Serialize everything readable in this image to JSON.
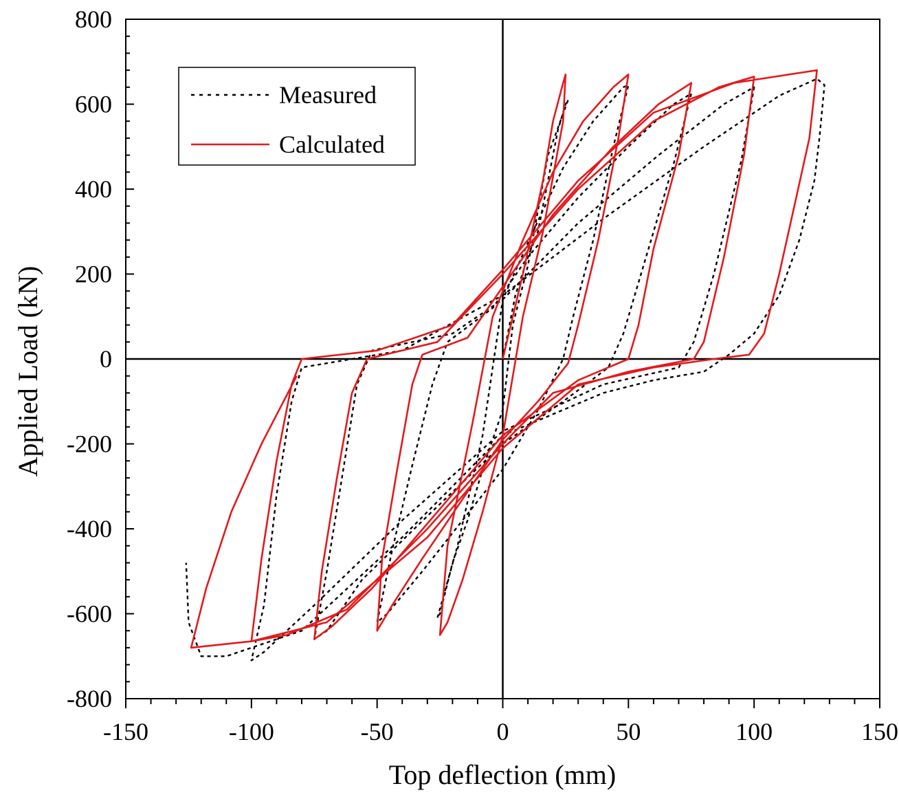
{
  "chart_data": {
    "type": "line",
    "title": "",
    "xlabel": "Top deflection (mm)",
    "ylabel": "Applied Load (kN)",
    "xlim": [
      -150,
      150
    ],
    "ylim": [
      -800,
      800
    ],
    "x_ticks": [
      -150,
      -100,
      -50,
      0,
      50,
      100,
      150
    ],
    "y_ticks": [
      800,
      600,
      400,
      200,
      0,
      -200,
      -400,
      -600,
      -800
    ],
    "grid": false,
    "legend_position": "top-left",
    "series": [
      {
        "name": "Measured",
        "style": "dotted",
        "color": "#000000",
        "points": [
          [
            0,
            0
          ],
          [
            5,
            150
          ],
          [
            10,
            240
          ],
          [
            14,
            300
          ],
          [
            18,
            420
          ],
          [
            22,
            540
          ],
          [
            25,
            600
          ],
          [
            26,
            610
          ],
          [
            18,
            480
          ],
          [
            10,
            220
          ],
          [
            4,
            80
          ],
          [
            0,
            -120
          ],
          [
            -8,
            -260
          ],
          [
            -14,
            -380
          ],
          [
            -20,
            -480
          ],
          [
            -25,
            -600
          ],
          [
            -26,
            -610
          ],
          [
            -18,
            -440
          ],
          [
            -8,
            -180
          ],
          [
            0,
            140
          ],
          [
            12,
            300
          ],
          [
            24,
            450
          ],
          [
            36,
            560
          ],
          [
            48,
            640
          ],
          [
            50,
            645
          ],
          [
            44,
            500
          ],
          [
            36,
            280
          ],
          [
            28,
            100
          ],
          [
            24,
            0
          ],
          [
            14,
            -120
          ],
          [
            0,
            -260
          ],
          [
            -16,
            -380
          ],
          [
            -32,
            -500
          ],
          [
            -46,
            -600
          ],
          [
            -50,
            -620
          ],
          [
            -44,
            -450
          ],
          [
            -36,
            -250
          ],
          [
            -28,
            -60
          ],
          [
            -22,
            40
          ],
          [
            -4,
            120
          ],
          [
            10,
            240
          ],
          [
            30,
            380
          ],
          [
            50,
            500
          ],
          [
            68,
            600
          ],
          [
            75,
            625
          ],
          [
            68,
            460
          ],
          [
            56,
            220
          ],
          [
            48,
            60
          ],
          [
            42,
            -20
          ],
          [
            24,
            -100
          ],
          [
            0,
            -200
          ],
          [
            -30,
            -370
          ],
          [
            -56,
            -520
          ],
          [
            -70,
            -640
          ],
          [
            -75,
            -660
          ],
          [
            -70,
            -500
          ],
          [
            -64,
            -280
          ],
          [
            -58,
            -60
          ],
          [
            -52,
            20
          ],
          [
            -20,
            60
          ],
          [
            0,
            140
          ],
          [
            30,
            320
          ],
          [
            62,
            480
          ],
          [
            88,
            600
          ],
          [
            100,
            640
          ],
          [
            95,
            470
          ],
          [
            84,
            200
          ],
          [
            76,
            40
          ],
          [
            70,
            -20
          ],
          [
            40,
            -60
          ],
          [
            0,
            -170
          ],
          [
            -40,
            -380
          ],
          [
            -75,
            -580
          ],
          [
            -95,
            -690
          ],
          [
            -100,
            -710
          ],
          [
            -95,
            -580
          ],
          [
            -90,
            -320
          ],
          [
            -84,
            -100
          ],
          [
            -80,
            -20
          ],
          [
            -40,
            20
          ],
          [
            0,
            150
          ],
          [
            40,
            330
          ],
          [
            80,
            500
          ],
          [
            110,
            620
          ],
          [
            125,
            660
          ],
          [
            128,
            645
          ],
          [
            126,
            520
          ],
          [
            124,
            420
          ],
          [
            118,
            280
          ],
          [
            110,
            150
          ],
          [
            100,
            60
          ],
          [
            90,
            10
          ],
          [
            80,
            -30
          ],
          [
            60,
            -50
          ],
          [
            40,
            -80
          ],
          [
            0,
            -180
          ],
          [
            -40,
            -420
          ],
          [
            -80,
            -640
          ],
          [
            -110,
            -700
          ],
          [
            -120,
            -700
          ],
          [
            -125,
            -620
          ],
          [
            -126,
            -480
          ]
        ]
      },
      {
        "name": "Calculated",
        "style": "solid",
        "color": "#e31a1c",
        "points": [
          [
            0,
            0
          ],
          [
            8,
            200
          ],
          [
            16,
            420
          ],
          [
            20,
            560
          ],
          [
            24,
            650
          ],
          [
            25,
            670
          ],
          [
            24,
            560
          ],
          [
            16,
            300
          ],
          [
            8,
            100
          ],
          [
            0,
            -180
          ],
          [
            -8,
            -360
          ],
          [
            -16,
            -520
          ],
          [
            -22,
            -620
          ],
          [
            -25,
            -650
          ],
          [
            -22,
            -440
          ],
          [
            -12,
            -150
          ],
          [
            -4,
            100
          ],
          [
            8,
            280
          ],
          [
            20,
            440
          ],
          [
            32,
            560
          ],
          [
            44,
            640
          ],
          [
            50,
            670
          ],
          [
            46,
            520
          ],
          [
            38,
            280
          ],
          [
            30,
            80
          ],
          [
            26,
            -10
          ],
          [
            14,
            -100
          ],
          [
            0,
            -190
          ],
          [
            -16,
            -330
          ],
          [
            -32,
            -470
          ],
          [
            -44,
            -580
          ],
          [
            -50,
            -640
          ],
          [
            -48,
            -470
          ],
          [
            -42,
            -260
          ],
          [
            -36,
            -60
          ],
          [
            -32,
            10
          ],
          [
            -14,
            50
          ],
          [
            0,
            170
          ],
          [
            20,
            340
          ],
          [
            44,
            500
          ],
          [
            62,
            600
          ],
          [
            75,
            650
          ],
          [
            70,
            480
          ],
          [
            60,
            260
          ],
          [
            54,
            80
          ],
          [
            50,
            0
          ],
          [
            30,
            -50
          ],
          [
            0,
            -180
          ],
          [
            -26,
            -360
          ],
          [
            -52,
            -540
          ],
          [
            -68,
            -630
          ],
          [
            -75,
            -660
          ],
          [
            -72,
            -500
          ],
          [
            -66,
            -280
          ],
          [
            -60,
            -80
          ],
          [
            -54,
            0
          ],
          [
            -26,
            40
          ],
          [
            0,
            200
          ],
          [
            30,
            400
          ],
          [
            60,
            560
          ],
          [
            86,
            640
          ],
          [
            100,
            665
          ],
          [
            96,
            480
          ],
          [
            88,
            240
          ],
          [
            80,
            40
          ],
          [
            76,
            0
          ],
          [
            50,
            -30
          ],
          [
            20,
            -80
          ],
          [
            0,
            -200
          ],
          [
            -30,
            -400
          ],
          [
            -62,
            -590
          ],
          [
            -86,
            -650
          ],
          [
            -100,
            -665
          ],
          [
            -96,
            -470
          ],
          [
            -90,
            -240
          ],
          [
            -84,
            -60
          ],
          [
            -80,
            0
          ],
          [
            -50,
            20
          ],
          [
            -20,
            80
          ],
          [
            0,
            210
          ],
          [
            30,
            420
          ],
          [
            60,
            580
          ],
          [
            92,
            650
          ],
          [
            125,
            680
          ],
          [
            122,
            520
          ],
          [
            116,
            360
          ],
          [
            110,
            200
          ],
          [
            104,
            60
          ],
          [
            98,
            10
          ],
          [
            84,
            0
          ],
          [
            60,
            -20
          ],
          [
            30,
            -60
          ],
          [
            0,
            -210
          ],
          [
            -30,
            -420
          ],
          [
            -70,
            -620
          ],
          [
            -100,
            -665
          ],
          [
            -124,
            -680
          ],
          [
            -118,
            -540
          ],
          [
            -108,
            -360
          ],
          [
            -96,
            -200
          ],
          [
            -82,
            -40
          ]
        ]
      }
    ]
  }
}
